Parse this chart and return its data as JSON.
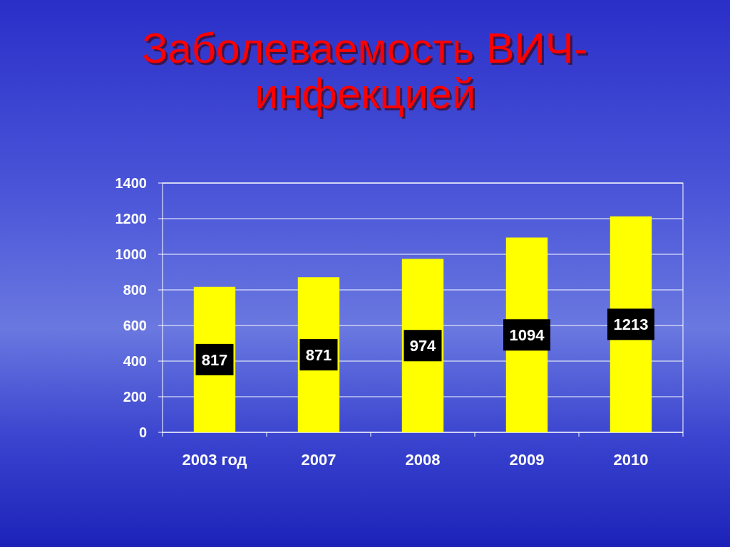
{
  "chart_data": {
    "type": "bar",
    "title": "Заболеваемость ВИЧ-инфекцией",
    "categories": [
      "2003 год",
      "2007",
      "2008",
      "2009",
      "2010"
    ],
    "values": [
      817,
      871,
      974,
      1094,
      1213
    ],
    "color": "#ffff00",
    "ylim": [
      0,
      1400
    ],
    "yticks": [
      0,
      200,
      400,
      600,
      800,
      1000,
      1200,
      1400
    ],
    "grid": "y",
    "data_labels": true
  }
}
